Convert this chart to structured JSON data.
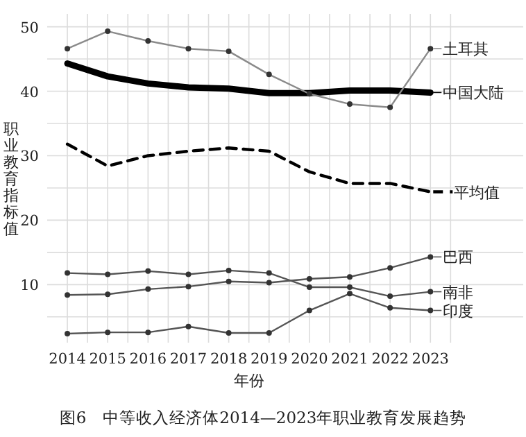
{
  "chart_data": {
    "type": "line",
    "title": "图6　中等收入经济体2014—2023年职业教育发展趋势",
    "xlabel": "年份",
    "ylabel": "职业教育指标值",
    "x": [
      2014,
      2015,
      2016,
      2017,
      2018,
      2019,
      2020,
      2021,
      2022,
      2023
    ],
    "xlim": [
      2013.5,
      2025.3
    ],
    "xticks": [
      2014,
      {
        "value": 2014.5,
        "label": null
      },
      2015,
      {
        "value": 2015.5,
        "label": null
      },
      2016,
      {
        "value": 2016.5,
        "label": null
      },
      2017,
      {
        "value": 2017.5,
        "label": null
      },
      2018,
      {
        "value": 2018.5,
        "label": null
      },
      2019,
      {
        "value": 2019.5,
        "label": null
      },
      2020,
      {
        "value": 2020.5,
        "label": null
      },
      2021,
      {
        "value": 2021.5,
        "label": null
      },
      2022,
      {
        "value": 2022.5,
        "label": null
      },
      2023,
      {
        "value": 2023.5,
        "label": null
      }
    ],
    "ylim": [
      1,
      52
    ],
    "yticks": [
      {
        "value": 5,
        "label": null
      },
      10,
      {
        "value": 15,
        "label": null
      },
      20,
      {
        "value": 25,
        "label": null
      },
      30,
      {
        "value": 35,
        "label": null
      },
      40,
      {
        "value": 45,
        "label": null
      },
      50
    ],
    "grid": true,
    "legend": "right",
    "series": [
      {
        "name": "土耳其",
        "color": "#8a8a8a",
        "marker": "circle",
        "line_style": "solid",
        "values": [
          46.6,
          49.3,
          47.8,
          46.6,
          46.2,
          42.6,
          39.6,
          38.0,
          37.5,
          46.6
        ]
      },
      {
        "name": "中国大陆",
        "color": "#000000",
        "marker": "none",
        "line_style": "solid",
        "values": [
          44.3,
          42.3,
          41.2,
          40.6,
          40.4,
          39.7,
          39.7,
          40.1,
          40.1,
          39.8
        ]
      },
      {
        "name": "平均值",
        "color": "#000000",
        "marker": "none",
        "line_style": "dashed",
        "values": [
          31.8,
          28.4,
          30.0,
          30.7,
          31.2,
          30.7,
          27.5,
          25.7,
          25.7,
          24.4
        ]
      },
      {
        "name": "巴西",
        "color": "#555555",
        "marker": "circle",
        "line_style": "solid",
        "values": [
          8.4,
          8.5,
          9.3,
          9.7,
          10.5,
          10.3,
          10.9,
          11.2,
          12.6,
          14.3
        ]
      },
      {
        "name": "南非",
        "color": "#555555",
        "marker": "circle",
        "line_style": "solid",
        "values": [
          11.8,
          11.6,
          12.1,
          11.6,
          12.2,
          11.8,
          9.6,
          9.6,
          8.2,
          8.9
        ]
      },
      {
        "name": "印度",
        "color": "#555555",
        "marker": "circle",
        "line_style": "solid",
        "values": [
          2.4,
          2.6,
          2.6,
          3.5,
          2.5,
          2.5,
          6.0,
          8.6,
          6.4,
          6.0
        ]
      }
    ]
  }
}
